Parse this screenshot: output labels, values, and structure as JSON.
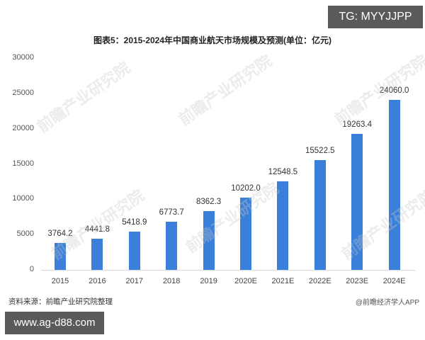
{
  "badges": {
    "top_right": "TG: MYYJJPP",
    "bottom_left": "www.ag-d88.com"
  },
  "footer": {
    "source": "资料来源：前瞻产业研究院整理",
    "credit": "@前瞻经济学人APP"
  },
  "watermark": "前瞻产业研究院",
  "colors": {
    "bar": "#3a7fd9",
    "axis": "#d9d9d9",
    "badge_bg": "#5a5a5a"
  },
  "chart_data": {
    "type": "bar",
    "title": "图表5：2015-2024年中国商业航天市场规模及预测(单位：亿元)",
    "xlabel": "",
    "ylabel": "",
    "ylim": [
      0,
      30000
    ],
    "yticks": [
      "30000",
      "25000",
      "20000",
      "15000",
      "10000",
      "5000",
      "0"
    ],
    "grid": false,
    "legend": null,
    "categories": [
      "2015",
      "2016",
      "2017",
      "2018",
      "2019",
      "2020E",
      "2021E",
      "2022E",
      "2023E",
      "2024E"
    ],
    "values": [
      3764.2,
      4441.8,
      5418.9,
      6773.7,
      8362.3,
      10202.0,
      12548.5,
      15522.5,
      19263.4,
      24060.0
    ],
    "value_labels": [
      "3764.2",
      "4441.8",
      "5418.9",
      "6773.7",
      "8362.3",
      "10202.0",
      "12548.5",
      "15522.5",
      "19263.4",
      "24060.0"
    ]
  }
}
